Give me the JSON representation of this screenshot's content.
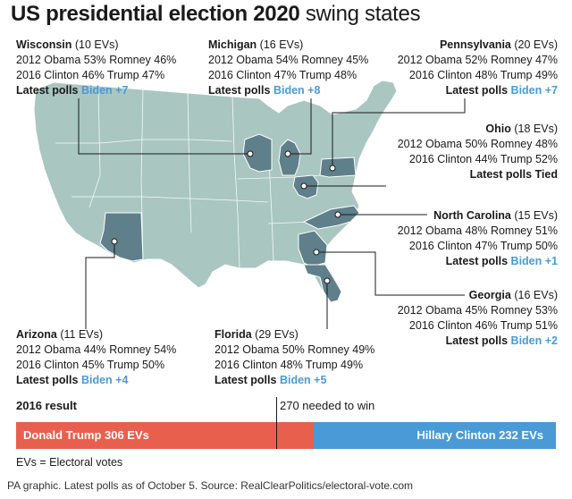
{
  "title": {
    "bold": "US presidential election 2020",
    "light": "swing states"
  },
  "colors": {
    "map_fill": "#a9c6c1",
    "highlight_state": "#5f7f8a",
    "biden": "#4a9ad6",
    "trump_bar": "#e8604d",
    "clinton_bar": "#4a9ad6"
  },
  "states": {
    "wisconsin": {
      "name": "Wisconsin",
      "evs": "(10 EVs)",
      "line1": "2012 Obama 53% Romney 46%",
      "line2": "2016 Clinton 46% Trump 47%",
      "latest": "Latest polls",
      "lead": "Biden +7"
    },
    "michigan": {
      "name": "Michigan",
      "evs": "(16 EVs)",
      "line1": "2012 Obama 54% Romney 45%",
      "line2": "2016 Clinton 47% Trump 48%",
      "latest": "Latest polls",
      "lead": "Biden +8"
    },
    "pennsylvania": {
      "name": "Pennsylvania",
      "evs": "(20 EVs)",
      "line1": "2012 Obama 52% Romney 47%",
      "line2": "2016 Clinton 48% Trump 49%",
      "latest": "Latest polls",
      "lead": "Biden +7"
    },
    "ohio": {
      "name": "Ohio",
      "evs": "(18 EVs)",
      "line1": "2012 Obama 50% Romney 48%",
      "line2": "2016 Clinton 44% Trump 52%",
      "latest": "Latest polls Tied",
      "lead": ""
    },
    "north_carolina": {
      "name": "North Carolina",
      "evs": "(15 EVs)",
      "line1": "2012 Obama 48% Romney 51%",
      "line2": "2016 Clinton 47% Trump 50%",
      "latest": "Latest polls",
      "lead": "Biden +1"
    },
    "georgia": {
      "name": "Georgia",
      "evs": "(16 EVs)",
      "line1": "2012 Obama 45% Romney 53%",
      "line2": "2016 Clinton 46% Trump 51%",
      "latest": "Latest polls",
      "lead": "Biden +2"
    },
    "florida": {
      "name": "Florida",
      "evs": "(29 EVs)",
      "line1": "2012 Obama 50% Romney 49%",
      "line2": "2016 Clinton 48% Trump 49%",
      "latest": "Latest polls",
      "lead": "Biden +5"
    },
    "arizona": {
      "name": "Arizona",
      "evs": "(11 EVs)",
      "line1": "2012 Obama 44% Romney 54%",
      "line2": "2016 Clinton 45% Trump 50%",
      "latest": "Latest polls",
      "lead": "Biden +4"
    }
  },
  "result": {
    "label": "2016 result",
    "needed": "270 needed to win",
    "trump": "Donald Trump 306 EVs",
    "clinton": "Hillary Clinton 232 EVs",
    "trump_evs": 306,
    "clinton_evs": 232
  },
  "legend": "EVs = Electoral votes",
  "source": "PA graphic. Latest polls as of October 5. Source: RealClearPolitics/electoral-vote.com"
}
